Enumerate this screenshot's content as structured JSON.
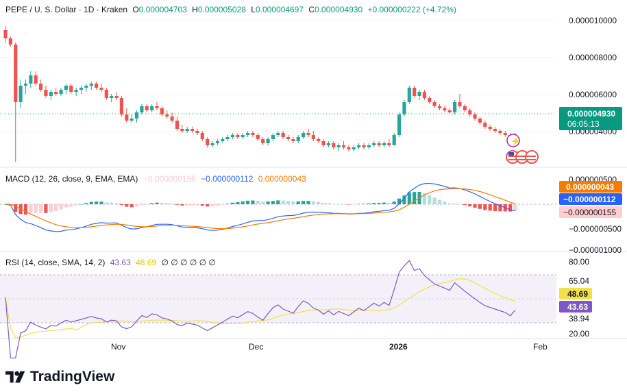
{
  "header": {
    "symbol": "PEPE / U. S. Dollar · 1D · Kraken",
    "open_label": "O",
    "open": "0.000004703",
    "high_label": "H",
    "high": "0.000005028",
    "low_label": "L",
    "low": "0.000004697",
    "close_label": "C",
    "close": "0.000004930",
    "change": "+0.000000222 (+4.72%)"
  },
  "price_axis": {
    "ticks": [
      "0.000010000",
      "0.000008000",
      "0.000006000",
      "0.000004000"
    ],
    "last_price": "0.000004930",
    "countdown": "06:05:13"
  },
  "macd": {
    "label": "MACD (12, 26, close, 9, EMA, EMA)",
    "hist_value": "−0.000000155",
    "macd_value": "−0.000000112",
    "signal_value": "0.000000043",
    "ticks": [
      "0.000000500",
      "−0.000000500",
      "−0.000001000"
    ]
  },
  "rsi": {
    "label": "RSI (14, close, SMA, 14, 2)",
    "rsi_value": "43.63",
    "ma_value": "48.69",
    "extra": "∅ ∅ ∅ ∅ ∅ ∅",
    "ticks": [
      "80.00",
      "65.04",
      "38.94",
      "20.00"
    ]
  },
  "time_axis": [
    "Nov",
    "Dec",
    "2026",
    "Feb"
  ],
  "brand": "TradingView",
  "colors": {
    "up": "#26a69a",
    "down": "#ef5350",
    "macd": "#2962ff",
    "signal": "#f57c00",
    "rsi": "#7e57c2",
    "rsi_ma": "#f2e04b",
    "hist_up_strong": "#26a69a",
    "hist_up_weak": "#b2dfdb",
    "hist_down_strong": "#ef5350",
    "hist_down_weak": "#ffcdd2"
  },
  "chart_data": {
    "type": "candlestick",
    "title": "PEPE / U. S. Dollar · 1D · Kraken",
    "ylim": [
      3.6e-06,
      1.08e-05
    ],
    "x_ticks": [
      "Nov",
      "Dec",
      "2026",
      "Feb"
    ],
    "candles": [
      [
        1e-05,
        1.02e-05,
        9.4e-06,
        9.6e-06
      ],
      [
        9.6e-06,
        9.7e-06,
        9.2e-06,
        9.3e-06
      ],
      [
        9.3e-06,
        9.4e-06,
        3e-06,
        6.5e-06
      ],
      [
        6.5e-06,
        7.6e-06,
        6.2e-06,
        7.3e-06
      ],
      [
        7.3e-06,
        7.6e-06,
        6.9e-06,
        7.4e-06
      ],
      [
        7.4e-06,
        8e-06,
        7.2e-06,
        7.8e-06
      ],
      [
        7.8e-06,
        8e-06,
        7.3e-06,
        7.4e-06
      ],
      [
        7.4e-06,
        7.6e-06,
        7e-06,
        7.1e-06
      ],
      [
        7.1e-06,
        7.3e-06,
        6.7e-06,
        6.8e-06
      ],
      [
        6.8e-06,
        7.1e-06,
        6.6e-06,
        7e-06
      ],
      [
        7e-06,
        7.2e-06,
        6.8e-06,
        6.9e-06
      ],
      [
        6.9e-06,
        7.2e-06,
        6.8e-06,
        7.1e-06
      ],
      [
        7.1e-06,
        7.4e-06,
        6.9e-06,
        7.3e-06
      ],
      [
        7.3e-06,
        7.4e-06,
        6.9e-06,
        7e-06
      ],
      [
        7e-06,
        7.2e-06,
        6.8e-06,
        7.1e-06
      ],
      [
        7.1e-06,
        7.3e-06,
        6.9e-06,
        7.2e-06
      ],
      [
        7.2e-06,
        7.4e-06,
        7e-06,
        7.3e-06
      ],
      [
        7.3e-06,
        7.5e-06,
        7.1e-06,
        7.4e-06
      ],
      [
        7.4e-06,
        7.5e-06,
        7.1e-06,
        7.2e-06
      ],
      [
        7.2e-06,
        7.4e-06,
        7e-06,
        7.1e-06
      ],
      [
        7.1e-06,
        7.2e-06,
        6.6e-06,
        6.7e-06
      ],
      [
        6.7e-06,
        6.9e-06,
        6.5e-06,
        6.8e-06
      ],
      [
        6.8e-06,
        7e-06,
        6.6e-06,
        6.7e-06
      ],
      [
        6.7e-06,
        6.8e-06,
        5.8e-06,
        5.9e-06
      ],
      [
        5.9e-06,
        6.2e-06,
        5.5e-06,
        5.6e-06
      ],
      [
        5.6e-06,
        5.9e-06,
        5.5e-06,
        5.7e-06
      ],
      [
        5.7e-06,
        6.1e-06,
        5.5e-06,
        6e-06
      ],
      [
        6e-06,
        6.4e-06,
        5.9e-06,
        6.3e-06
      ],
      [
        6.3e-06,
        6.4e-06,
        6e-06,
        6.1e-06
      ],
      [
        6.1e-06,
        6.4e-06,
        6e-06,
        6.3e-06
      ],
      [
        6.3e-06,
        6.5e-06,
        6.1e-06,
        6.2e-06
      ],
      [
        6.2e-06,
        6.3e-06,
        5.8e-06,
        5.9e-06
      ],
      [
        5.9e-06,
        6.1e-06,
        5.7e-06,
        5.8e-06
      ],
      [
        5.8e-06,
        6e-06,
        5.5e-06,
        5.6e-06
      ],
      [
        5.6e-06,
        5.8e-06,
        5.1e-06,
        5.2e-06
      ],
      [
        5.2e-06,
        5.4e-06,
        5e-06,
        5.1e-06
      ],
      [
        5.1e-06,
        5.3e-06,
        5e-06,
        5.2e-06
      ],
      [
        5.2e-06,
        5.3e-06,
        5e-06,
        5.1e-06
      ],
      [
        5.1e-06,
        5.2e-06,
        4.9e-06,
        5e-06
      ],
      [
        5e-06,
        5.1e-06,
        4.6e-06,
        4.7e-06
      ],
      [
        4.7e-06,
        4.8e-06,
        4.3e-06,
        4.4e-06
      ],
      [
        4.4e-06,
        4.6e-06,
        4.3e-06,
        4.5e-06
      ],
      [
        4.5e-06,
        4.7e-06,
        4.4e-06,
        4.6e-06
      ],
      [
        4.6e-06,
        4.8e-06,
        4.5e-06,
        4.7e-06
      ],
      [
        4.7e-06,
        4.9e-06,
        4.6e-06,
        4.8e-06
      ],
      [
        4.8e-06,
        5e-06,
        4.7e-06,
        4.9e-06
      ],
      [
        4.9e-06,
        5e-06,
        4.7e-06,
        4.8e-06
      ],
      [
        4.8e-06,
        5e-06,
        4.7e-06,
        4.9e-06
      ],
      [
        4.9e-06,
        5.1e-06,
        4.8e-06,
        5e-06
      ],
      [
        5e-06,
        5.1e-06,
        4.8e-06,
        4.9e-06
      ],
      [
        4.9e-06,
        5e-06,
        4.6e-06,
        4.7e-06
      ],
      [
        4.7e-06,
        4.8e-06,
        4.4e-06,
        4.5e-06
      ],
      [
        4.5e-06,
        4.8e-06,
        4.4e-06,
        4.7e-06
      ],
      [
        4.7e-06,
        5e-06,
        4.6e-06,
        4.9e-06
      ],
      [
        4.9e-06,
        5.1e-06,
        4.8e-06,
        5e-06
      ],
      [
        5e-06,
        5.1e-06,
        4.7e-06,
        4.8e-06
      ],
      [
        4.8e-06,
        4.9e-06,
        4.6e-06,
        4.7e-06
      ],
      [
        4.7e-06,
        4.8e-06,
        4.5e-06,
        4.6e-06
      ],
      [
        4.6e-06,
        4.9e-06,
        4.5e-06,
        4.8e-06
      ],
      [
        4.8e-06,
        5.1e-06,
        4.7e-06,
        5e-06
      ],
      [
        5e-06,
        5.2e-06,
        4.8e-06,
        4.9e-06
      ],
      [
        4.9e-06,
        5.1e-06,
        4.6e-06,
        4.7e-06
      ],
      [
        4.7e-06,
        4.8e-06,
        4.5e-06,
        4.6e-06
      ],
      [
        4.6e-06,
        4.7e-06,
        4.3e-06,
        4.4e-06
      ],
      [
        4.4e-06,
        4.6e-06,
        4.3e-06,
        4.5e-06
      ],
      [
        4.5e-06,
        4.6e-06,
        4.2e-06,
        4.3e-06
      ],
      [
        4.3e-06,
        4.5e-06,
        4.1e-06,
        4.4e-06
      ],
      [
        4.4e-06,
        4.6e-06,
        4.2e-06,
        4.3e-06
      ],
      [
        4.3e-06,
        4.4e-06,
        4.1e-06,
        4.2e-06
      ],
      [
        4.2e-06,
        4.4e-06,
        4.1e-06,
        4.3e-06
      ],
      [
        4.3e-06,
        4.5e-06,
        4.2e-06,
        4.4e-06
      ],
      [
        4.4e-06,
        4.5e-06,
        4.2e-06,
        4.3e-06
      ],
      [
        4.3e-06,
        4.5e-06,
        4.2e-06,
        4.4e-06
      ],
      [
        4.4e-06,
        4.6e-06,
        4.3e-06,
        4.5e-06
      ],
      [
        4.5e-06,
        4.6e-06,
        4.3e-06,
        4.4e-06
      ],
      [
        4.4e-06,
        4.6e-06,
        4.3e-06,
        4.5e-06
      ],
      [
        4.5e-06,
        4.7e-06,
        4.3e-06,
        4.4e-06
      ],
      [
        4.4e-06,
        5e-06,
        4.4e-06,
        4.9e-06
      ],
      [
        4.9e-06,
        6e-06,
        4.8e-06,
        5.9e-06
      ],
      [
        5.9e-06,
        6.6e-06,
        5.8e-06,
        6.5e-06
      ],
      [
        6.5e-06,
        7.3e-06,
        6.4e-06,
        7.2e-06
      ],
      [
        7.2e-06,
        7.3e-06,
        6.7e-06,
        6.8e-06
      ],
      [
        6.8e-06,
        7.1e-06,
        6.6e-06,
        7e-06
      ],
      [
        7e-06,
        7.1e-06,
        6.6e-06,
        6.7e-06
      ],
      [
        6.7e-06,
        6.8e-06,
        6.4e-06,
        6.5e-06
      ],
      [
        6.5e-06,
        6.6e-06,
        6.2e-06,
        6.3e-06
      ],
      [
        6.3e-06,
        6.4e-06,
        6.1e-06,
        6.2e-06
      ],
      [
        6.2e-06,
        6.3e-06,
        6e-06,
        6.1e-06
      ],
      [
        6.1e-06,
        6.2e-06,
        5.9e-06,
        6e-06
      ],
      [
        6e-06,
        6.6e-06,
        5.9e-06,
        6.5e-06
      ],
      [
        6.5e-06,
        6.9e-06,
        6.2e-06,
        6.3e-06
      ],
      [
        6.3e-06,
        6.4e-06,
        6e-06,
        6.1e-06
      ],
      [
        6.1e-06,
        6.2e-06,
        5.8e-06,
        5.9e-06
      ],
      [
        5.9e-06,
        6e-06,
        5.6e-06,
        5.7e-06
      ],
      [
        5.7e-06,
        5.8e-06,
        5.4e-06,
        5.5e-06
      ],
      [
        5.5e-06,
        5.6e-06,
        5.2e-06,
        5.3e-06
      ],
      [
        5.3e-06,
        5.4e-06,
        5.1e-06,
        5.2e-06
      ],
      [
        5.2e-06,
        5.3e-06,
        5e-06,
        5.1e-06
      ],
      [
        5.1e-06,
        5.2e-06,
        4.9e-06,
        5e-06
      ],
      [
        5e-06,
        5.1e-06,
        4.8e-06,
        4.9e-06
      ],
      [
        4.9e-06,
        5e-06,
        4.6e-06,
        4.7e-06
      ],
      [
        4.7e-06,
        5e-06,
        4.7e-06,
        4.9e-06
      ]
    ]
  }
}
